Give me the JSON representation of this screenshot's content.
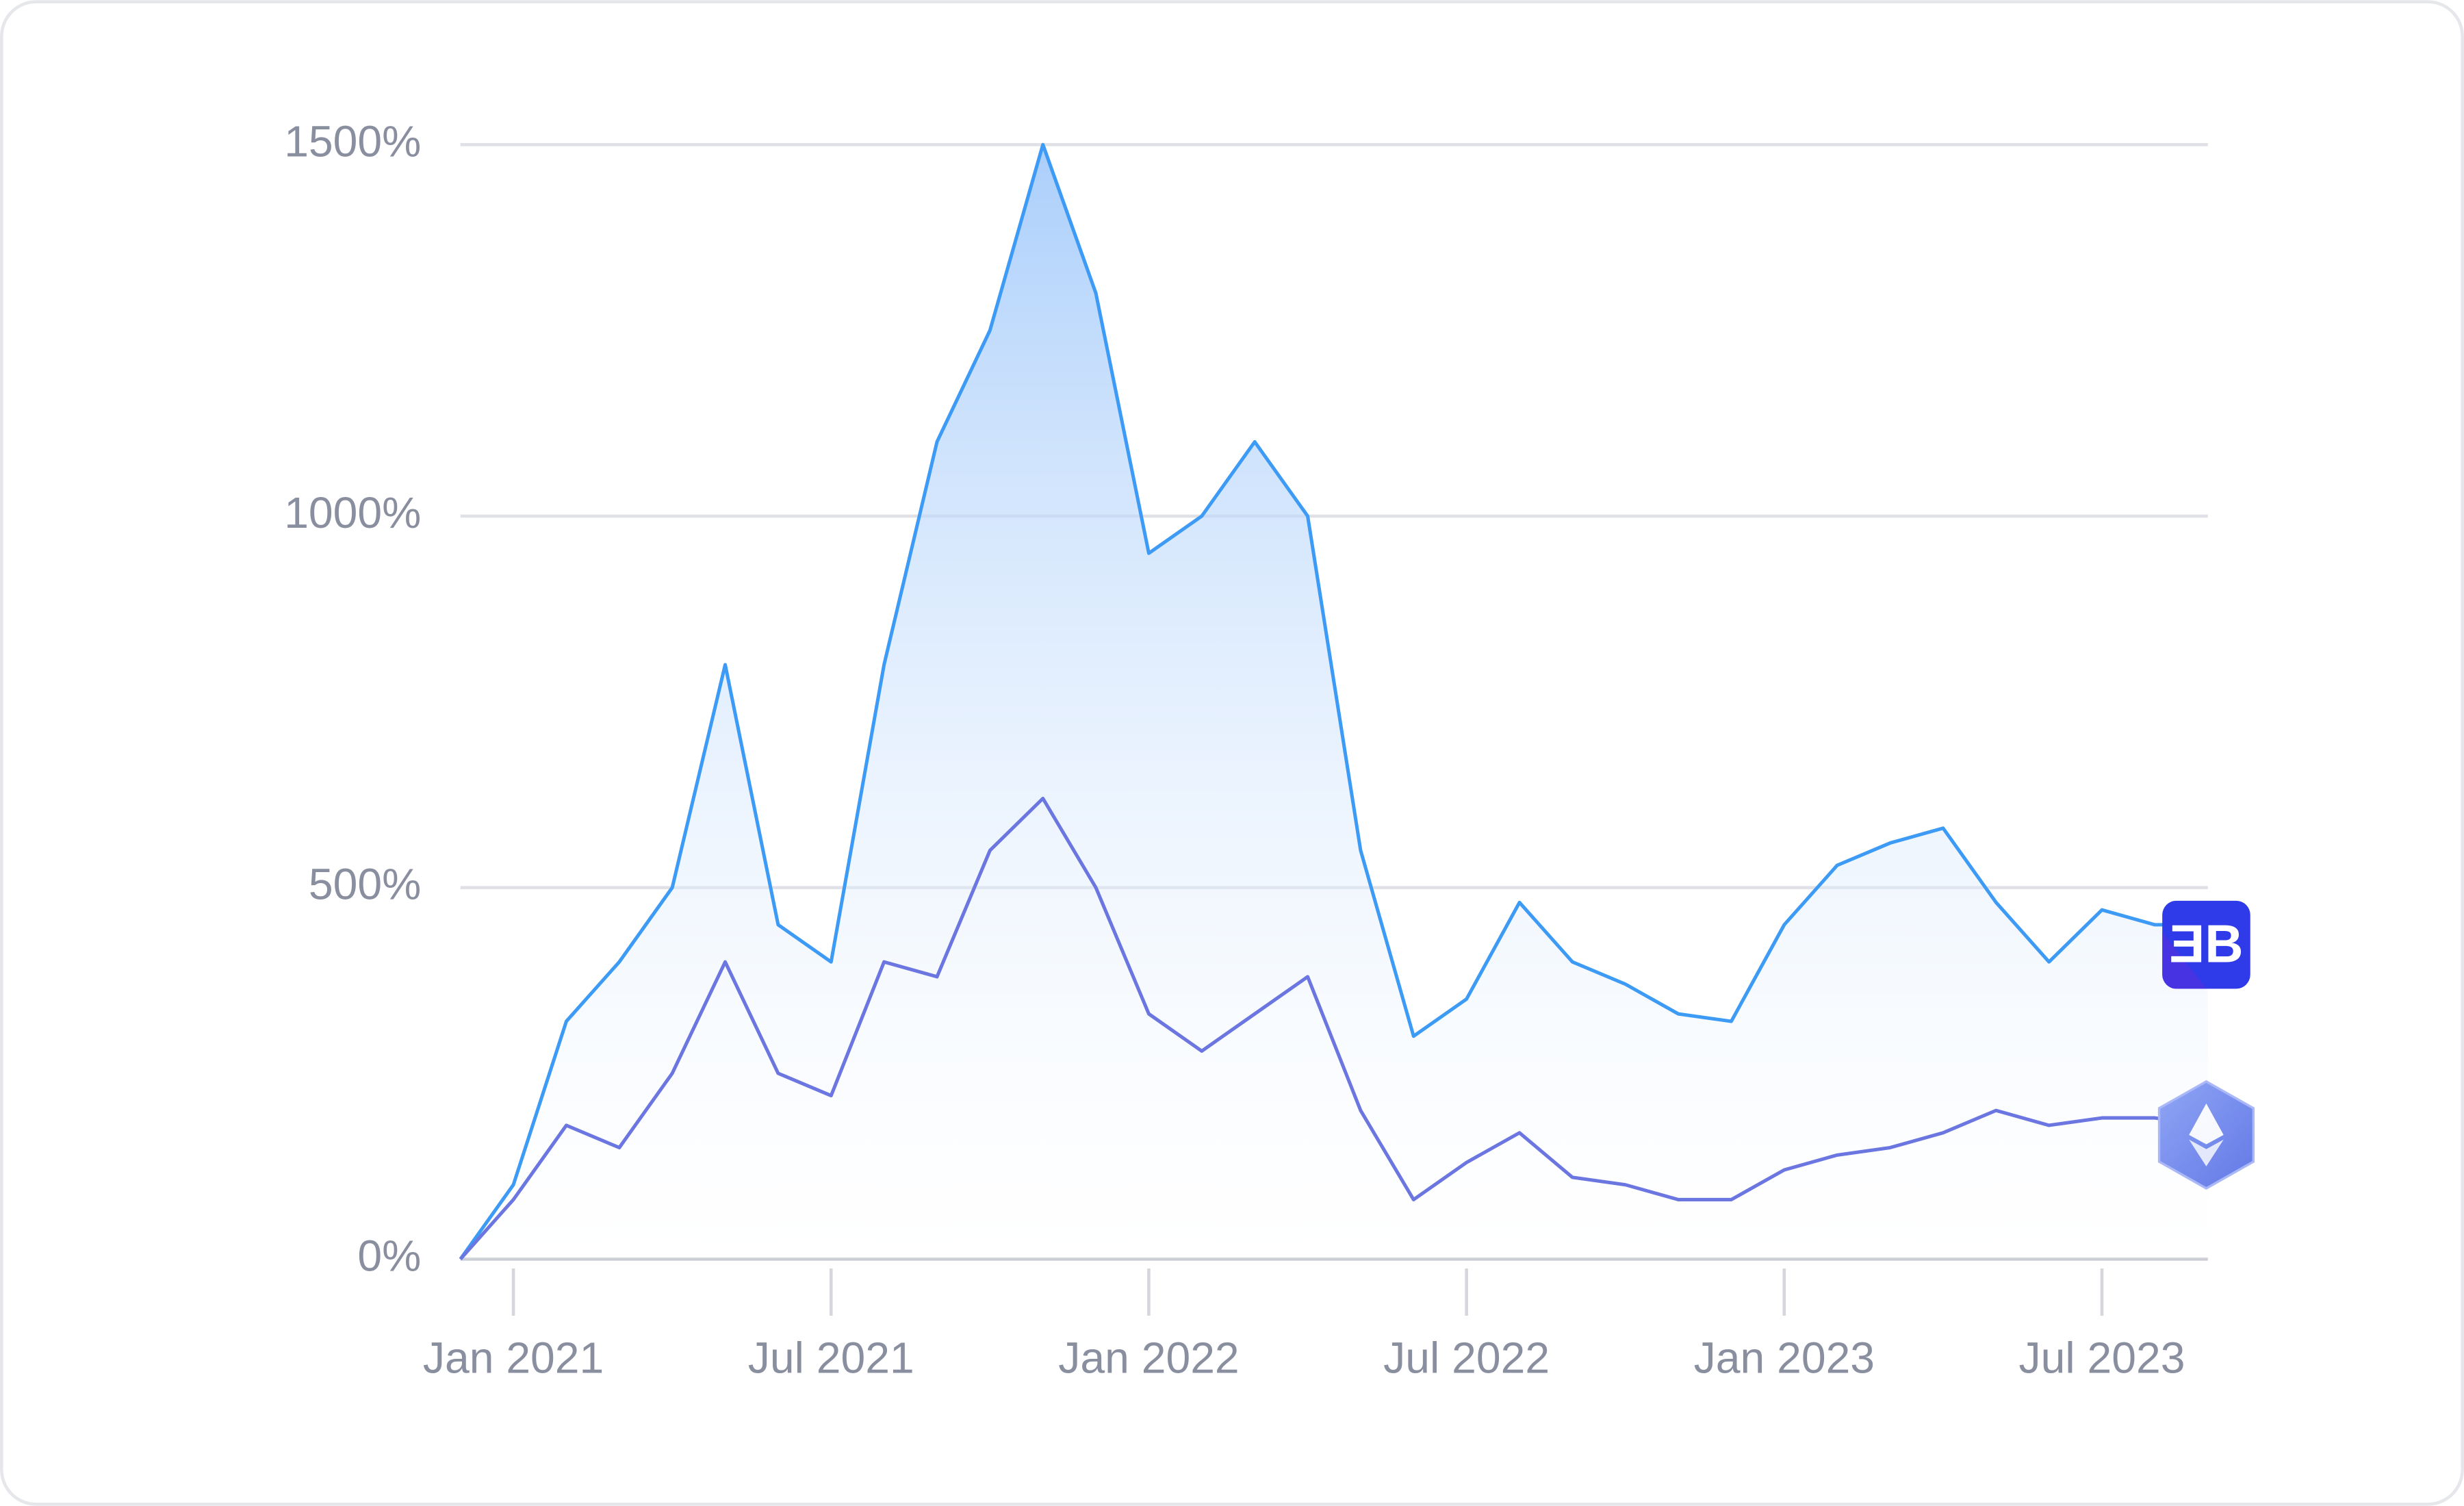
{
  "chart_data": {
    "type": "line",
    "x": [
      "2020-12",
      "2021-01",
      "2021-02",
      "2021-03",
      "2021-04",
      "2021-05",
      "2021-06",
      "2021-07",
      "2021-08",
      "2021-09",
      "2021-10",
      "2021-11",
      "2021-12",
      "2022-01",
      "2022-02",
      "2022-03",
      "2022-04",
      "2022-05",
      "2022-06",
      "2022-07",
      "2022-08",
      "2022-09",
      "2022-10",
      "2022-11",
      "2022-12",
      "2023-01",
      "2023-02",
      "2023-03",
      "2023-04",
      "2023-05",
      "2023-06",
      "2023-07",
      "2023-08",
      "2023-09"
    ],
    "series": [
      {
        "color": "#3d9bf5",
        "fill": true,
        "values": [
          0,
          100,
          320,
          400,
          500,
          800,
          450,
          400,
          800,
          1100,
          1250,
          1500,
          1300,
          950,
          1000,
          1100,
          1000,
          550,
          300,
          350,
          480,
          400,
          370,
          330,
          320,
          450,
          530,
          560,
          580,
          480,
          400,
          470,
          450,
          450
        ]
      },
      {
        "color": "#6b76e0",
        "fill": false,
        "values": [
          0,
          80,
          180,
          150,
          250,
          400,
          250,
          220,
          400,
          380,
          550,
          620,
          500,
          330,
          280,
          330,
          380,
          200,
          80,
          130,
          170,
          110,
          100,
          80,
          80,
          120,
          140,
          150,
          170,
          200,
          180,
          190,
          190,
          180
        ]
      }
    ],
    "xlim": [
      "2020-12",
      "2023-09"
    ],
    "xticks": [
      {
        "value": "2021-01",
        "label": "Jan 2021"
      },
      {
        "value": "2021-07",
        "label": "Jul 2021"
      },
      {
        "value": "2022-01",
        "label": "Jan 2022"
      },
      {
        "value": "2022-07",
        "label": "Jul 2022"
      },
      {
        "value": "2023-01",
        "label": "Jan 2023"
      },
      {
        "value": "2023-07",
        "label": "Jul 2023"
      }
    ],
    "ylim": [
      0,
      1540
    ],
    "yticks": [
      {
        "value": 0,
        "label": "0%"
      },
      {
        "value": 500,
        "label": "500%"
      },
      {
        "value": 1000,
        "label": "1000%"
      },
      {
        "value": 1500,
        "label": "1500%"
      }
    ],
    "grid": true
  }
}
